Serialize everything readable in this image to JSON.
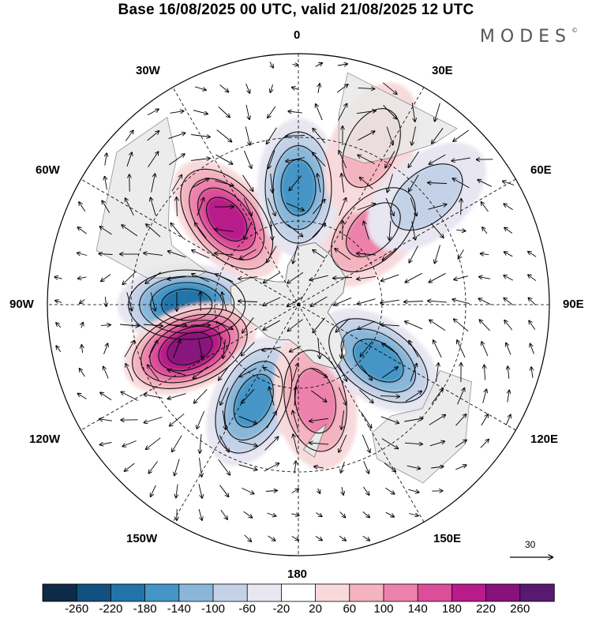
{
  "header": {
    "title": "Base 16/08/2025 00 UTC, valid 21/08/2025 12 UTC",
    "brand": "MODES",
    "brand_mark": "©"
  },
  "map": {
    "projection": "south-polar-stereographic",
    "longitude_labels": {
      "top": "0",
      "bottom": "180",
      "left": "90W",
      "right": "90E",
      "upper_left_1": "30W",
      "upper_left_2": "60W",
      "upper_right_1": "30E",
      "upper_right_2": "60E",
      "lower_left_1": "120W",
      "lower_left_2": "150W",
      "lower_right_1": "120E",
      "lower_right_2": "150E"
    },
    "vector_reference": {
      "label": "30"
    },
    "anomaly_centers": [
      {
        "name": "positive-anomaly-south-atlantic",
        "sign": "positive",
        "lon": -40,
        "lat": -50,
        "peak": 220
      },
      {
        "name": "negative-anomaly-drake-passage",
        "sign": "negative",
        "lon": -90,
        "lat": -50,
        "peak": -220
      },
      {
        "name": "positive-anomaly-southeast-pacific",
        "sign": "positive",
        "lon": -112,
        "lat": -48,
        "peak": 240
      },
      {
        "name": "negative-anomaly-south-pacific",
        "sign": "negative",
        "lon": -155,
        "lat": -52,
        "peak": -180
      },
      {
        "name": "positive-anomaly-tasman",
        "sign": "positive",
        "lon": 170,
        "lat": -55,
        "peak": 140
      },
      {
        "name": "negative-anomaly-south-indian",
        "sign": "negative",
        "lon": 125,
        "lat": -55,
        "peak": -160
      },
      {
        "name": "positive-anomaly-indian-ocean",
        "sign": "positive",
        "lon": 45,
        "lat": -52,
        "peak": 140
      },
      {
        "name": "negative-anomaly-greenwich",
        "sign": "negative",
        "lon": 0,
        "lat": -48,
        "peak": -180
      },
      {
        "name": "positive-anomaly-south-africa",
        "sign": "positive",
        "lon": 25,
        "lat": -28,
        "peak": 100
      },
      {
        "name": "negative-anomaly-southwest-indian",
        "sign": "negative",
        "lon": 50,
        "lat": -30,
        "peak": -100
      }
    ]
  },
  "colorbar": {
    "colors": [
      "#0d2a47",
      "#12507f",
      "#2274a8",
      "#4596c6",
      "#8ab7d9",
      "#c4d2e7",
      "#e7e6f1",
      "#ffffff",
      "#f8dadc",
      "#f3b3bf",
      "#ec82ab",
      "#dc4e9a",
      "#b81b8a",
      "#88127c",
      "#571a70"
    ],
    "ticks": [
      "-260",
      "-220",
      "-180",
      "-140",
      "-100",
      "-60",
      "-20",
      "20",
      "60",
      "100",
      "140",
      "180",
      "220",
      "260"
    ]
  }
}
